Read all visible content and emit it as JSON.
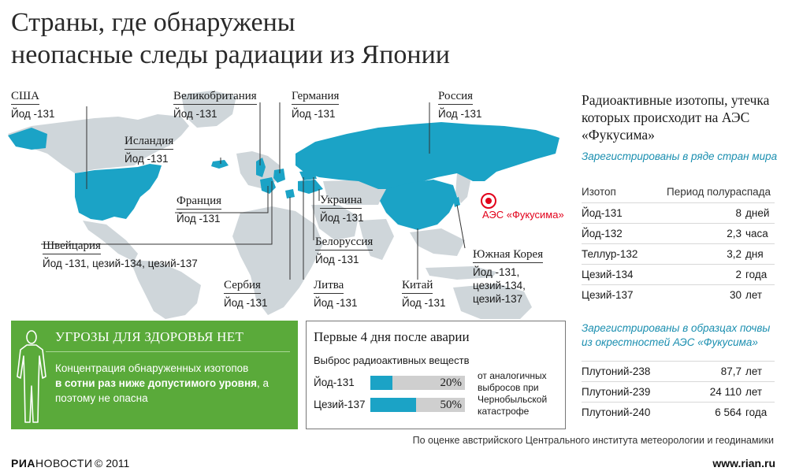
{
  "title": [
    "Страны, где обнаружены",
    "неопасные следы радиации из Японии"
  ],
  "map": {
    "countries": [
      {
        "id": "usa",
        "name": "США",
        "isotopes": [
          "Йод -131"
        ]
      },
      {
        "id": "iceland",
        "name": "Исландия",
        "isotopes": [
          "Йод -131"
        ]
      },
      {
        "id": "uk",
        "name": "Великобритания",
        "isotopes": [
          "Йод -131"
        ]
      },
      {
        "id": "germany",
        "name": "Германия",
        "isotopes": [
          "Йод -131"
        ]
      },
      {
        "id": "russia",
        "name": "Россия",
        "isotopes": [
          "Йод -131"
        ]
      },
      {
        "id": "france",
        "name": "Франция",
        "isotopes": [
          "Йод -131"
        ]
      },
      {
        "id": "ukraine",
        "name": "Украина",
        "isotopes": [
          "Йод -131"
        ]
      },
      {
        "id": "belarus",
        "name": "Белоруссия",
        "isotopes": [
          "Йод -131"
        ]
      },
      {
        "id": "switzerland",
        "name": "Швейцария",
        "isotopes": [
          "Йод -131, цезий-134, цезий-137"
        ]
      },
      {
        "id": "serbia",
        "name": "Сербия",
        "isotopes": [
          "Йод -131"
        ]
      },
      {
        "id": "lithuania",
        "name": "Литва",
        "isotopes": [
          "Йод -131"
        ]
      },
      {
        "id": "china",
        "name": "Китай",
        "isotopes": [
          "Йод -131"
        ]
      },
      {
        "id": "south_korea",
        "name": "Южная Корея",
        "isotopes": [
          "Йод -131,",
          "цезий-134,",
          "цезий-137"
        ]
      }
    ],
    "plant_label": "АЭС «Фукусима»",
    "colors": {
      "highlight": "#1ba3c6",
      "land": "#cfd6da",
      "plant": "#e2001a"
    }
  },
  "isotopes_panel": {
    "title": "Радиоактивные изотопы, утечка которых происходит на АЭС «Фукусима»",
    "section1": {
      "subtitle": "Зарегистрированы в ряде стран мира",
      "col_isotope": "Изотоп",
      "col_half_life": "Период полураспада",
      "rows": [
        {
          "name": "Йод-131",
          "value": "8",
          "unit": "дней"
        },
        {
          "name": "Йод-132",
          "value": "2,3",
          "unit": "часа"
        },
        {
          "name": "Теллур-132",
          "value": "3,2",
          "unit": "дня"
        },
        {
          "name": "Цезий-134",
          "value": "2",
          "unit": "года"
        },
        {
          "name": "Цезий-137",
          "value": "30",
          "unit": "лет"
        }
      ]
    },
    "section2": {
      "subtitle": "Зарегистрированы в образцах почвы из окрестностей АЭС «Фукусима»",
      "rows": [
        {
          "name": "Плутоний-238",
          "value": "87,7",
          "unit": "лет"
        },
        {
          "name": "Плутоний-239",
          "value": "24 110",
          "unit": "лет"
        },
        {
          "name": "Плутоний-240",
          "value": "6 564",
          "unit": "года"
        }
      ]
    }
  },
  "health_box": {
    "title": "УГРОЗЫ ДЛЯ ЗДОРОВЬЯ НЕТ",
    "text_before": "Концентрация обнаруженных изотопов",
    "text_bold": "в сотни раз ниже допустимого уровня",
    "text_after": ", а поэтому не опасна",
    "icon": "person-silhouette-icon"
  },
  "release_box": {
    "title": "Первые 4 дня после аварии",
    "subtitle": "Выброс радиоактивных веществ",
    "bars": [
      {
        "label": "Йод-131",
        "percent": 20,
        "percent_label": "20%"
      },
      {
        "label": "Цезий-137",
        "percent": 50,
        "percent_label": "50%"
      }
    ],
    "note": "от аналогичных выбросов при Чернобыльской катастрофе"
  },
  "footer": {
    "source": "По оценке австрийского Центрального института метеорологии и геодинамики",
    "logo_bold": "РИА",
    "logo_thin": "НОВОСТИ",
    "copyright": "© 2011",
    "site": "www.rian.ru"
  }
}
